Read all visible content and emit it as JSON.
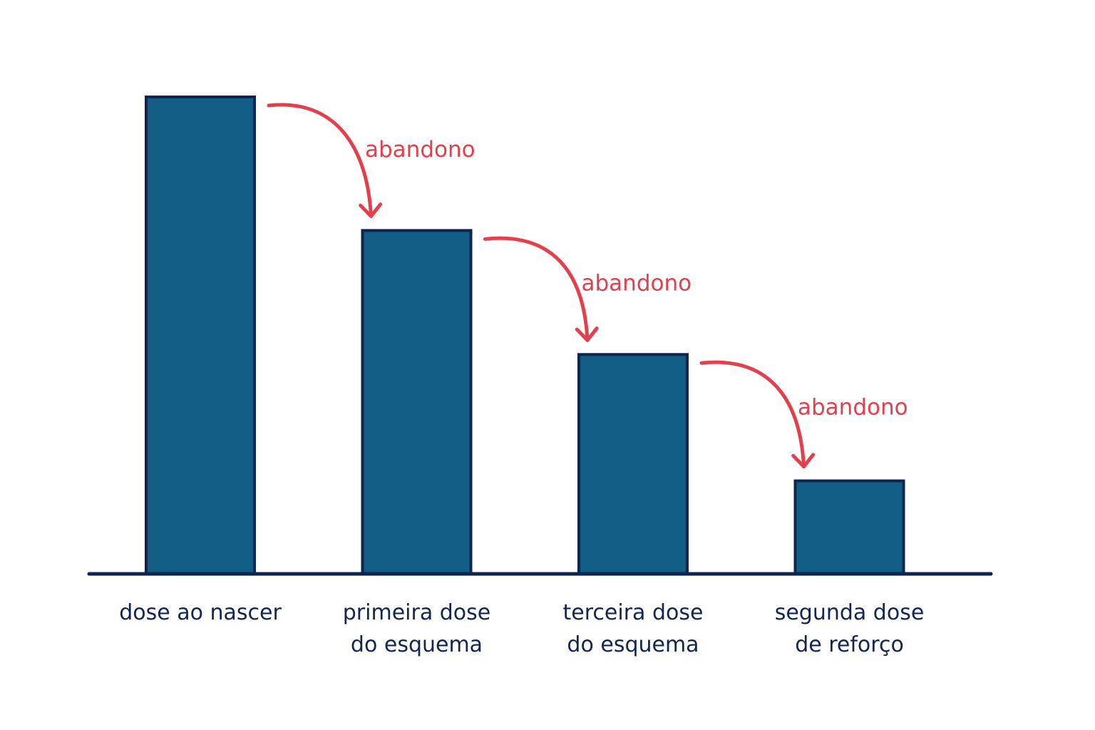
{
  "chart_data": {
    "type": "bar",
    "categories": [
      [
        "dose ao nascer"
      ],
      [
        "primeira dose",
        "do esquema"
      ],
      [
        "terceira dose",
        "do esquema"
      ],
      [
        "segunda dose",
        "de reforço"
      ]
    ],
    "values": [
      100,
      72,
      46,
      19.5
    ],
    "ylim": [
      0,
      100
    ],
    "grid": false,
    "title": "",
    "xlabel": "",
    "ylabel": "",
    "annotations": [
      {
        "text": "abandono",
        "from": 0,
        "to": 1
      },
      {
        "text": "abandono",
        "from": 1,
        "to": 2
      },
      {
        "text": "abandono",
        "from": 2,
        "to": 3
      }
    ],
    "colors": {
      "bar_fill": "#115d84",
      "bar_stroke": "#0f2550",
      "axis": "#0f2550",
      "annotation": "#e2404c",
      "label": "#13264f"
    }
  }
}
